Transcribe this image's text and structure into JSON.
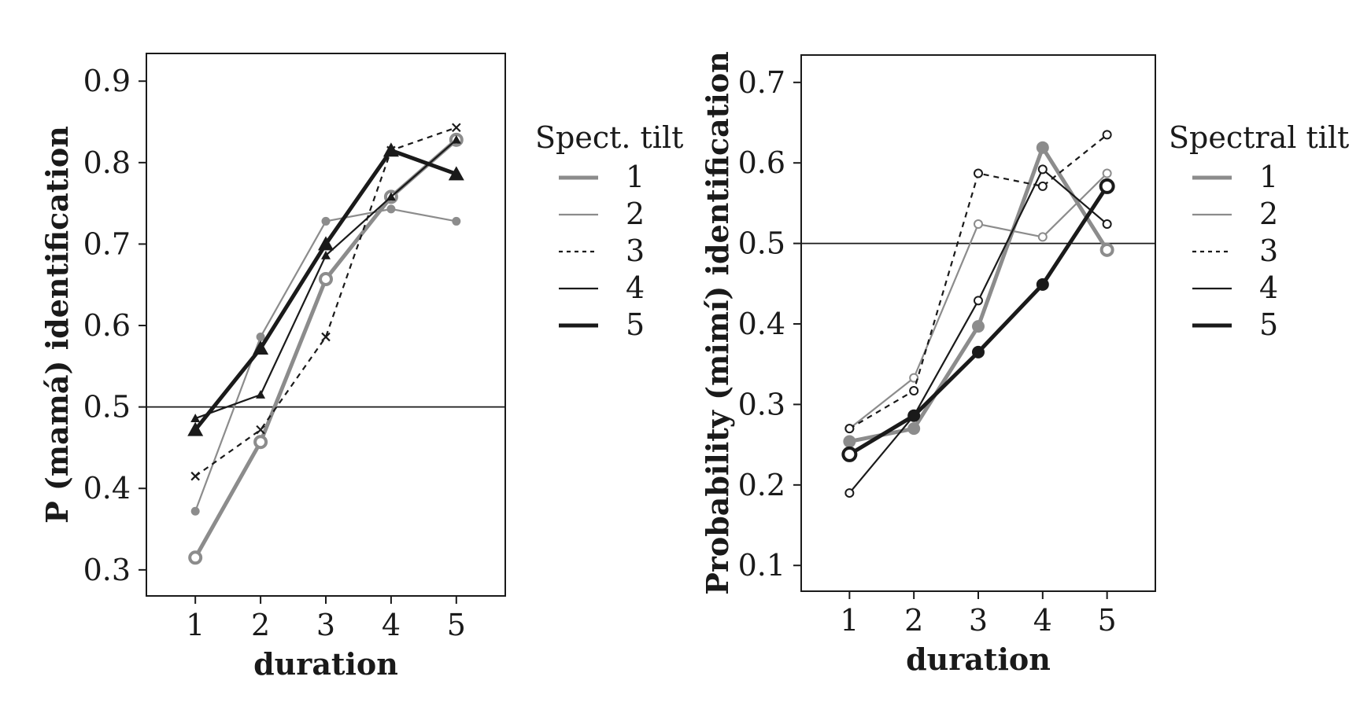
{
  "chart_data": [
    {
      "type": "line",
      "xlabel": "duration",
      "ylabel": "P (mamá) identification",
      "x": [
        1,
        2,
        3,
        4,
        5
      ],
      "xlim": [
        0.25,
        5.75
      ],
      "ylim": [
        0.268,
        0.934
      ],
      "xticks": [
        1,
        2,
        3,
        4,
        5
      ],
      "yticks": [
        0.3,
        0.4,
        0.5,
        0.6,
        0.7,
        0.8,
        0.9
      ],
      "ytick_labels": [
        "0.3",
        "0.4",
        "0.5",
        "0.6",
        "0.7",
        "0.8",
        "0.9"
      ],
      "reference_line": 0.5,
      "legend": {
        "title": "Spect. tilt",
        "placement": "right"
      },
      "series": [
        {
          "name": "1",
          "values": [
            0.315,
            0.457,
            0.657,
            0.758,
            0.828
          ]
        },
        {
          "name": "2",
          "values": [
            0.372,
            0.586,
            0.728,
            0.743,
            0.728
          ]
        },
        {
          "name": "3",
          "values": [
            0.415,
            0.472,
            0.586,
            0.815,
            0.843
          ]
        },
        {
          "name": "4",
          "values": [
            0.486,
            0.515,
            0.686,
            0.758,
            0.828
          ]
        },
        {
          "name": "5",
          "values": [
            0.472,
            0.572,
            0.7,
            0.815,
            0.786
          ]
        }
      ]
    },
    {
      "type": "line",
      "xlabel": "duration",
      "ylabel": "Probability (mimí) identification",
      "x": [
        1,
        2,
        3,
        4,
        5
      ],
      "xlim": [
        0.25,
        5.75
      ],
      "ylim": [
        0.068,
        0.734
      ],
      "xticks": [
        1,
        2,
        3,
        4,
        5
      ],
      "yticks": [
        0.1,
        0.2,
        0.3,
        0.4,
        0.5,
        0.6,
        0.7
      ],
      "ytick_labels": [
        "0.1",
        "0.2",
        "0.3",
        "0.4",
        "0.5",
        "0.6",
        "0.7"
      ],
      "reference_line": 0.5,
      "legend": {
        "title": "Spectral tilt",
        "placement": "right"
      },
      "series": [
        {
          "name": "1",
          "values": [
            0.254,
            0.27,
            0.397,
            0.619,
            0.492
          ]
        },
        {
          "name": "2",
          "values": [
            0.27,
            0.333,
            0.524,
            0.508,
            0.587
          ]
        },
        {
          "name": "3",
          "values": [
            0.27,
            0.317,
            0.587,
            0.571,
            0.635
          ]
        },
        {
          "name": "4",
          "values": [
            0.19,
            0.286,
            0.429,
            0.592,
            0.524
          ]
        },
        {
          "name": "5",
          "values": [
            0.238,
            0.286,
            0.365,
            0.449,
            0.571
          ]
        }
      ]
    }
  ]
}
